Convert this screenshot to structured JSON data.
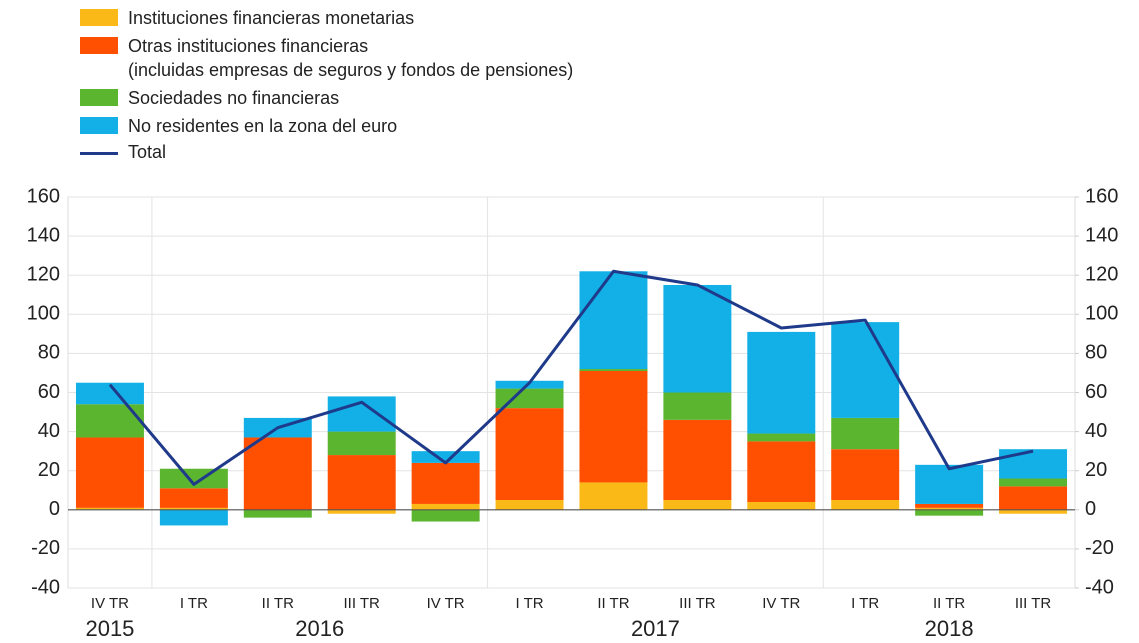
{
  "chart_data": {
    "type": "bar",
    "stacked": true,
    "categories": [
      "IV TR",
      "I TR",
      "II TR",
      "III TR",
      "IV TR",
      "I TR",
      "II TR",
      "III TR",
      "IV TR",
      "I TR",
      "II TR",
      "III TR"
    ],
    "year_labels": [
      "2015",
      "2016",
      "2017",
      "2018"
    ],
    "year_spans": [
      1,
      4,
      4,
      3
    ],
    "series": [
      {
        "name": "Instituciones financieras monetarias",
        "color": "#fbb917",
        "values": [
          1,
          1,
          0,
          -2,
          3,
          5,
          14,
          5,
          4,
          5,
          1,
          -2
        ]
      },
      {
        "name": "Otras instituciones financieras\n(incluidas empresas de seguros y fondos de pensiones)",
        "color": "#ff4f00",
        "values": [
          36,
          10,
          37,
          28,
          21,
          47,
          57,
          41,
          31,
          26,
          2,
          12
        ]
      },
      {
        "name": "Sociedades no financieras",
        "color": "#5cb52f",
        "values": [
          17,
          10,
          -4,
          12,
          -6,
          10,
          1,
          14,
          4,
          16,
          -3,
          4
        ]
      },
      {
        "name": "No residentes en la zona del euro",
        "color": "#12b0e6",
        "values": [
          11,
          -8,
          10,
          18,
          6,
          4,
          50,
          55,
          52,
          49,
          20,
          15
        ]
      },
      {
        "name": "Total",
        "type": "line",
        "color": "#1f3a8a",
        "values": [
          64,
          13,
          42,
          55,
          24,
          65,
          122,
          115,
          93,
          97,
          21,
          30
        ]
      }
    ],
    "ylim": [
      -40,
      160
    ],
    "yticks": [
      -40,
      -20,
      0,
      20,
      40,
      60,
      80,
      100,
      120,
      140,
      160
    ],
    "y2lim": [
      -40,
      160
    ],
    "y2ticks": [
      -40,
      -20,
      0,
      20,
      40,
      60,
      80,
      100,
      120,
      140,
      160
    ],
    "grid": true
  }
}
